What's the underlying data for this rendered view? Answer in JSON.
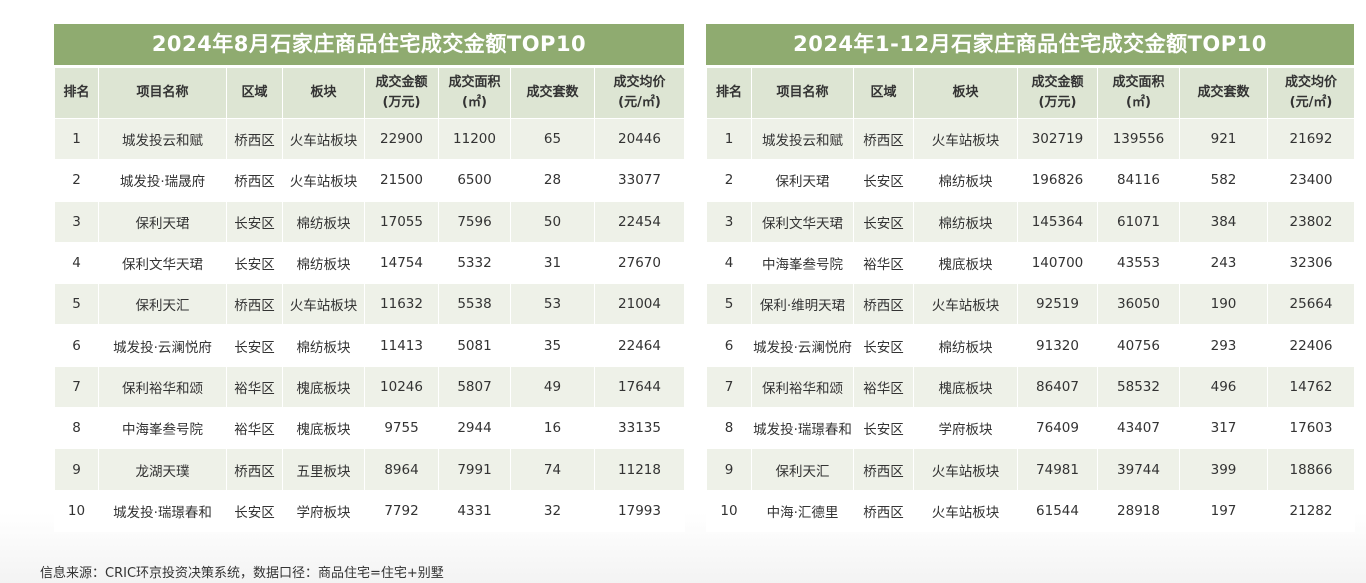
{
  "left_table": {
    "title": "2024年8月石家庄商品住宅成交金额TOP10",
    "headers": {
      "rank": "排名",
      "project": "项目名称",
      "district": "区域",
      "block": "板块",
      "amount_1": "成交金额",
      "amount_2": "(万元)",
      "area_1": "成交面积",
      "area_2": "(㎡)",
      "units": "成交套数",
      "price_1": "成交均价",
      "price_2": "(元/㎡)"
    },
    "rows": [
      {
        "rank": "1",
        "project": "城发投云和赋",
        "district": "桥西区",
        "block": "火车站板块",
        "amount": "22900",
        "area": "11200",
        "units": "65",
        "price": "20446"
      },
      {
        "rank": "2",
        "project": "城发投·瑞晟府",
        "district": "桥西区",
        "block": "火车站板块",
        "amount": "21500",
        "area": "6500",
        "units": "28",
        "price": "33077"
      },
      {
        "rank": "3",
        "project": "保利天珺",
        "district": "长安区",
        "block": "棉纺板块",
        "amount": "17055",
        "area": "7596",
        "units": "50",
        "price": "22454"
      },
      {
        "rank": "4",
        "project": "保利文华天珺",
        "district": "长安区",
        "block": "棉纺板块",
        "amount": "14754",
        "area": "5332",
        "units": "31",
        "price": "27670"
      },
      {
        "rank": "5",
        "project": "保利天汇",
        "district": "桥西区",
        "block": "火车站板块",
        "amount": "11632",
        "area": "5538",
        "units": "53",
        "price": "21004"
      },
      {
        "rank": "6",
        "project": "城发投·云澜悦府",
        "district": "长安区",
        "block": "棉纺板块",
        "amount": "11413",
        "area": "5081",
        "units": "35",
        "price": "22464"
      },
      {
        "rank": "7",
        "project": "保利裕华和颂",
        "district": "裕华区",
        "block": "槐底板块",
        "amount": "10246",
        "area": "5807",
        "units": "49",
        "price": "17644"
      },
      {
        "rank": "8",
        "project": "中海峯叁号院",
        "district": "裕华区",
        "block": "槐底板块",
        "amount": "9755",
        "area": "2944",
        "units": "16",
        "price": "33135"
      },
      {
        "rank": "9",
        "project": "龙湖天璞",
        "district": "桥西区",
        "block": "五里板块",
        "amount": "8964",
        "area": "7991",
        "units": "74",
        "price": "11218"
      },
      {
        "rank": "10",
        "project": "城发投·瑞璟春和",
        "district": "长安区",
        "block": "学府板块",
        "amount": "7792",
        "area": "4331",
        "units": "32",
        "price": "17993"
      }
    ]
  },
  "right_table": {
    "title": "2024年1-12月石家庄商品住宅成交金额TOP10",
    "headers": {
      "rank": "排名",
      "project": "项目名称",
      "district": "区域",
      "block": "板块",
      "amount_1": "成交金额",
      "amount_2": "(万元)",
      "area_1": "成交面积",
      "area_2": "(㎡)",
      "units": "成交套数",
      "price_1": "成交均价",
      "price_2": "(元/㎡)"
    },
    "rows": [
      {
        "rank": "1",
        "project": "城发投云和赋",
        "district": "桥西区",
        "block": "火车站板块",
        "amount": "302719",
        "area": "139556",
        "units": "921",
        "price": "21692"
      },
      {
        "rank": "2",
        "project": "保利天珺",
        "district": "长安区",
        "block": "棉纺板块",
        "amount": "196826",
        "area": "84116",
        "units": "582",
        "price": "23400"
      },
      {
        "rank": "3",
        "project": "保利文华天珺",
        "district": "长安区",
        "block": "棉纺板块",
        "amount": "145364",
        "area": "61071",
        "units": "384",
        "price": "23802"
      },
      {
        "rank": "4",
        "project": "中海峯叁号院",
        "district": "裕华区",
        "block": "槐底板块",
        "amount": "140700",
        "area": "43553",
        "units": "243",
        "price": "32306"
      },
      {
        "rank": "5",
        "project": "保利·维明天珺",
        "district": "桥西区",
        "block": "火车站板块",
        "amount": "92519",
        "area": "36050",
        "units": "190",
        "price": "25664"
      },
      {
        "rank": "6",
        "project": "城发投·云澜悦府",
        "district": "长安区",
        "block": "棉纺板块",
        "amount": "91320",
        "area": "40756",
        "units": "293",
        "price": "22406"
      },
      {
        "rank": "7",
        "project": "保利裕华和颂",
        "district": "裕华区",
        "block": "槐底板块",
        "amount": "86407",
        "area": "58532",
        "units": "496",
        "price": "14762"
      },
      {
        "rank": "8",
        "project": "城发投·瑞璟春和",
        "district": "长安区",
        "block": "学府板块",
        "amount": "76409",
        "area": "43407",
        "units": "317",
        "price": "17603"
      },
      {
        "rank": "9",
        "project": "保利天汇",
        "district": "桥西区",
        "block": "火车站板块",
        "amount": "74981",
        "area": "39744",
        "units": "399",
        "price": "18866"
      },
      {
        "rank": "10",
        "project": "中海·汇德里",
        "district": "桥西区",
        "block": "火车站板块",
        "amount": "61544",
        "area": "28918",
        "units": "197",
        "price": "21282"
      }
    ]
  },
  "footer": {
    "source": "信息来源：CRIC环京投资决策系统，数据口径：商品住宅=住宅+别墅"
  }
}
